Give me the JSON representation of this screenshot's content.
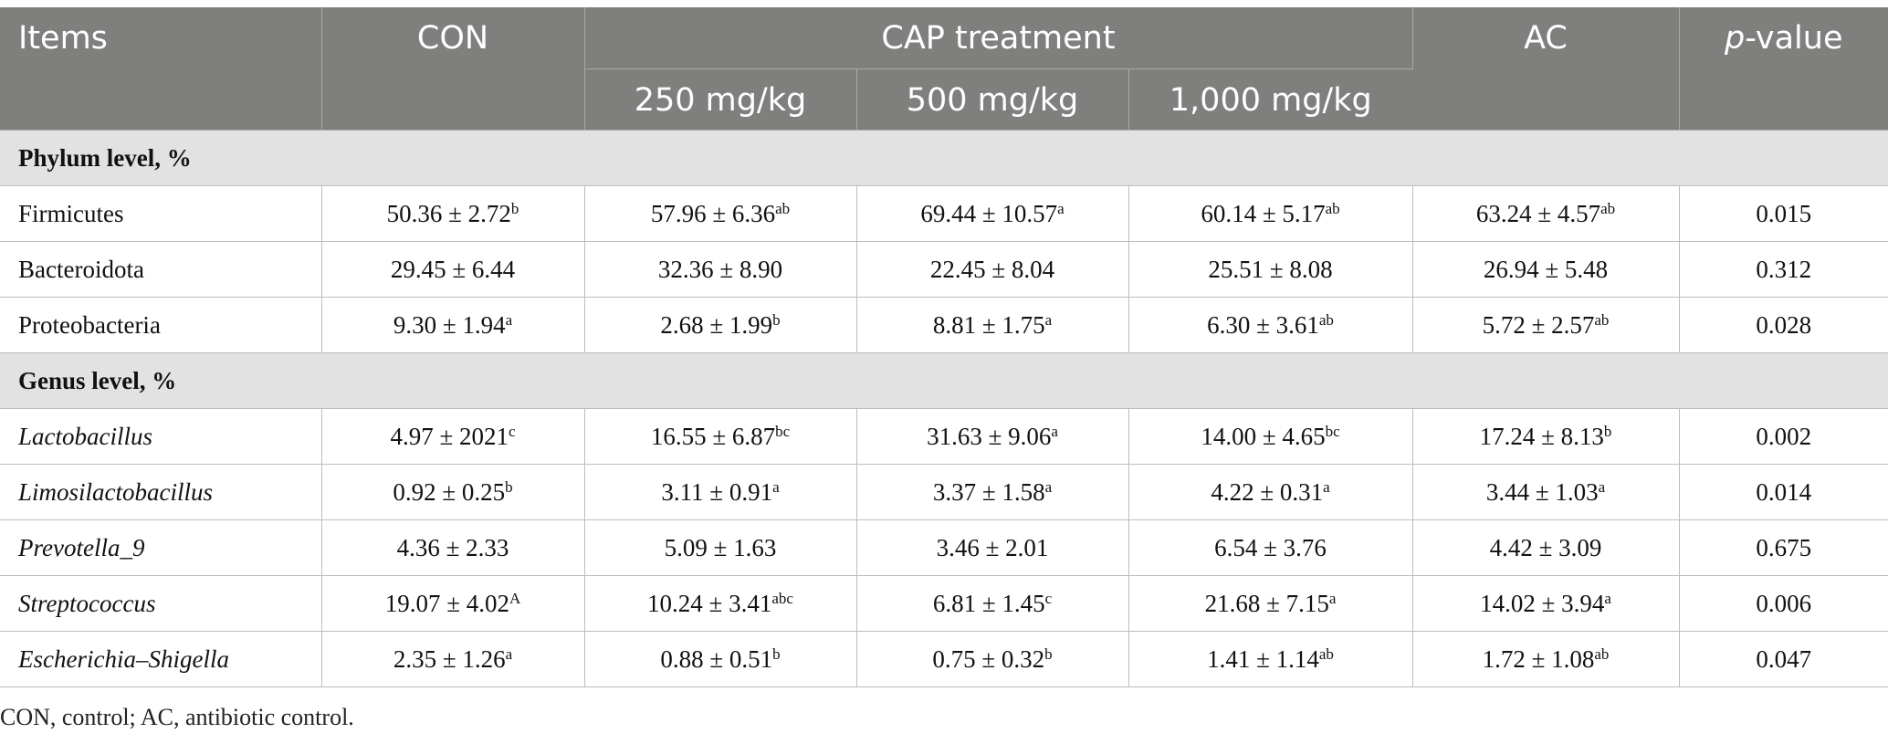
{
  "header": {
    "items": "Items",
    "con": "CON",
    "cap_treatment": "CAP treatment",
    "ac": "AC",
    "p_value_italic": "p",
    "p_value_rest": "-value",
    "doses": [
      "250 mg/kg",
      "500 mg/kg",
      "1,000 mg/kg"
    ]
  },
  "sections": [
    {
      "title": "Phylum level, %",
      "rows": [
        {
          "name": "Firmicutes",
          "italic": false,
          "cells": [
            {
              "v": "50.36 ± 2.72",
              "s": "b"
            },
            {
              "v": "57.96 ± 6.36",
              "s": "ab"
            },
            {
              "v": "69.44 ± 10.57",
              "s": "a"
            },
            {
              "v": "60.14 ± 5.17",
              "s": "ab"
            },
            {
              "v": "63.24 ± 4.57",
              "s": "ab"
            }
          ],
          "p": "0.015"
        },
        {
          "name": "Bacteroidota",
          "italic": false,
          "cells": [
            {
              "v": "29.45 ± 6.44",
              "s": ""
            },
            {
              "v": "32.36 ± 8.90",
              "s": ""
            },
            {
              "v": "22.45 ± 8.04",
              "s": ""
            },
            {
              "v": "25.51 ± 8.08",
              "s": ""
            },
            {
              "v": "26.94 ± 5.48",
              "s": ""
            }
          ],
          "p": "0.312"
        },
        {
          "name": "Proteobacteria",
          "italic": false,
          "cells": [
            {
              "v": "9.30 ± 1.94",
              "s": "a"
            },
            {
              "v": "2.68 ± 1.99",
              "s": "b"
            },
            {
              "v": "8.81 ± 1.75",
              "s": "a"
            },
            {
              "v": "6.30 ± 3.61",
              "s": "ab"
            },
            {
              "v": "5.72 ± 2.57",
              "s": "ab"
            }
          ],
          "p": "0.028"
        }
      ]
    },
    {
      "title": "Genus level, %",
      "rows": [
        {
          "name": "Lactobacillus",
          "italic": true,
          "cells": [
            {
              "v": "4.97 ± 2021",
              "s": "c"
            },
            {
              "v": "16.55 ± 6.87",
              "s": "bc"
            },
            {
              "v": "31.63 ± 9.06",
              "s": "a"
            },
            {
              "v": "14.00 ± 4.65",
              "s": "bc"
            },
            {
              "v": "17.24 ± 8.13",
              "s": "b"
            }
          ],
          "p": "0.002"
        },
        {
          "name": "Limosilactobacillus",
          "italic": true,
          "cells": [
            {
              "v": "0.92 ± 0.25",
              "s": "b"
            },
            {
              "v": "3.11 ± 0.91",
              "s": "a"
            },
            {
              "v": "3.37 ± 1.58",
              "s": "a"
            },
            {
              "v": "4.22 ± 0.31",
              "s": "a"
            },
            {
              "v": "3.44 ± 1.03",
              "s": "a"
            }
          ],
          "p": "0.014"
        },
        {
          "name": "Prevotella_9",
          "italic": true,
          "cells": [
            {
              "v": "4.36 ± 2.33",
              "s": ""
            },
            {
              "v": "5.09 ± 1.63",
              "s": ""
            },
            {
              "v": "3.46 ± 2.01",
              "s": ""
            },
            {
              "v": "6.54 ± 3.76",
              "s": ""
            },
            {
              "v": "4.42 ± 3.09",
              "s": ""
            }
          ],
          "p": "0.675"
        },
        {
          "name": "Streptococcus",
          "italic": true,
          "cells": [
            {
              "v": "19.07 ± 4.02",
              "s": "A"
            },
            {
              "v": "10.24 ± 3.41",
              "s": "abc"
            },
            {
              "v": "6.81 ± 1.45",
              "s": "c"
            },
            {
              "v": "21.68 ± 7.15",
              "s": "a"
            },
            {
              "v": "14.02 ± 3.94",
              "s": "a"
            }
          ],
          "p": "0.006"
        },
        {
          "name": "Escherichia–Shigella",
          "italic": true,
          "cells": [
            {
              "v": "2.35 ± 1.26",
              "s": "a"
            },
            {
              "v": "0.88 ± 0.51",
              "s": "b"
            },
            {
              "v": "0.75 ± 0.32",
              "s": "b"
            },
            {
              "v": "1.41 ± 1.14",
              "s": "ab"
            },
            {
              "v": "1.72 ± 1.08",
              "s": "ab"
            }
          ],
          "p": "0.047"
        }
      ]
    }
  ],
  "footnote": "CON, control; AC, antibiotic control."
}
